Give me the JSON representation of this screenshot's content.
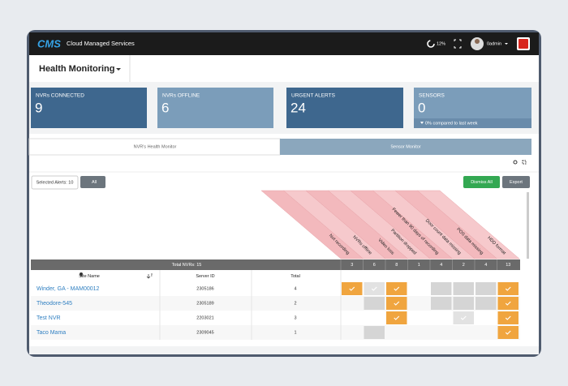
{
  "topbar": {
    "logo": "CMS",
    "title": "Cloud Managed Services",
    "cpu": "12%",
    "user": "0admin"
  },
  "page_title": "Health Monitoring",
  "cards": [
    {
      "label": "NVRs CONNECTED",
      "value": 9
    },
    {
      "label": "NVRs OFFLINE",
      "value": 6
    },
    {
      "label": "URGENT ALERTS",
      "value": 24
    },
    {
      "label": "SENSORS",
      "value": 0,
      "note": "0% compared to last week"
    }
  ],
  "tabs": [
    "NVR's Health Monitor",
    "Sensor Monitor"
  ],
  "toolbar": {
    "selected": "Selected Alerts: 10",
    "filter": "All",
    "dismiss": "Dismiss All",
    "export": "Export"
  },
  "alert_columns": [
    {
      "label": "Not recording",
      "count": 3
    },
    {
      "label": "NVRs offline",
      "count": 6
    },
    {
      "label": "Video loss",
      "count": 8
    },
    {
      "label": "Partition dropped",
      "count": 1
    },
    {
      "label": "Fewer than 90 days of recording",
      "count": 4
    },
    {
      "label": "Door count data missing",
      "count": 2
    },
    {
      "label": "POS data missing",
      "count": 4
    },
    {
      "label": "HDD format",
      "count": 13
    }
  ],
  "table": {
    "total": "Total NVRs: 15",
    "headers": [
      "Site Name",
      "Server ID",
      "Total"
    ],
    "rows": [
      [
        "Winder, GA - MAM00012",
        2305186,
        4
      ],
      [
        "Theodore-545",
        2305189,
        2
      ],
      [
        "Test NVR",
        2203021,
        3
      ],
      [
        "Taco Mama",
        2309045,
        1
      ]
    ]
  }
}
